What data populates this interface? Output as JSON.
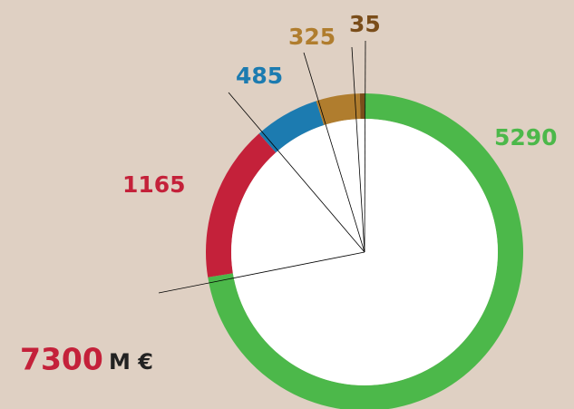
{
  "chart_data": {
    "type": "pie",
    "values": [
      5290,
      1165,
      485,
      325,
      35
    ],
    "colors": [
      "#4cb84a",
      "#c4213a",
      "#1c7bb0",
      "#b07d2e",
      "#7a4d1a"
    ],
    "total": 7300,
    "unit": "M €",
    "total_color": "#c4213a"
  }
}
